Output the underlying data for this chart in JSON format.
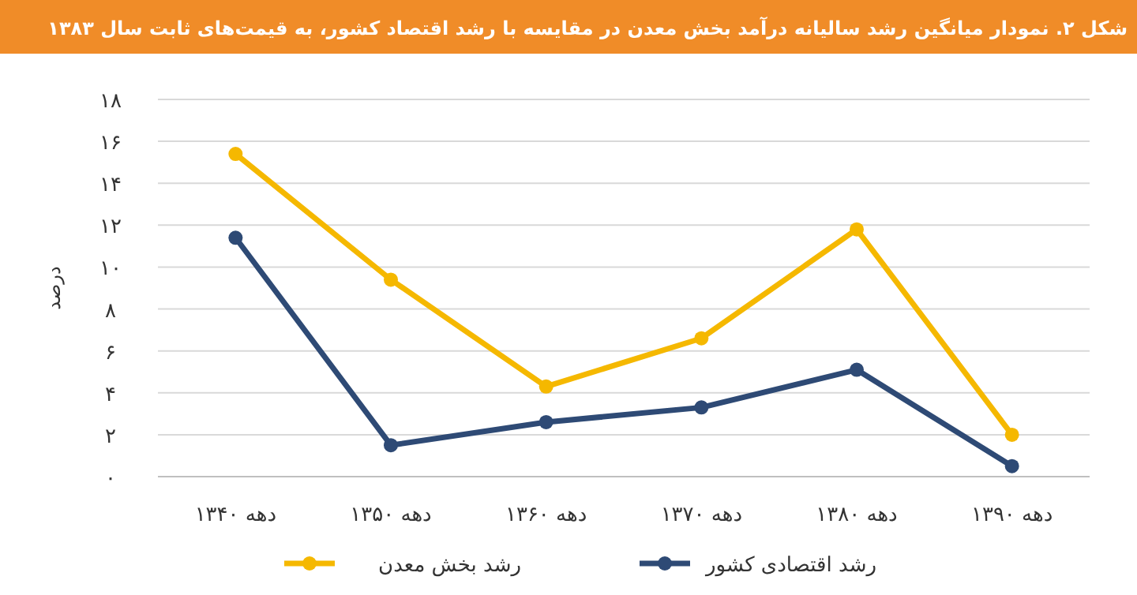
{
  "chart_data": {
    "type": "line",
    "title": "شکل ۲. نمودار میانگین رشد سالیانه درآمد بخش معدن در مقایسه با رشد اقتصاد کشور، به قیمت‌های ثابت سال ۱۳۸۳",
    "ylabel": "درصد",
    "categories": [
      "دهه ۱۳۴۰",
      "دهه ۱۳۵۰",
      "دهه ۱۳۶۰",
      "دهه ۱۳۷۰",
      "دهه ۱۳۸۰",
      "دهه ۱۳۹۰"
    ],
    "series": [
      {
        "name": "رشد بخش معدن",
        "color": "#f5b800",
        "values": [
          15.4,
          9.4,
          4.3,
          6.6,
          11.8,
          2.0
        ]
      },
      {
        "name": "رشد اقتصادی کشور",
        "color": "#2e4a75",
        "values": [
          11.4,
          1.5,
          2.6,
          3.3,
          5.1,
          0.5
        ]
      }
    ],
    "ylim": [
      0,
      18
    ],
    "yticks": [
      {
        "value": 0,
        "label": "۰"
      },
      {
        "value": 2,
        "label": "۲"
      },
      {
        "value": 4,
        "label": "۴"
      },
      {
        "value": 6,
        "label": "۶"
      },
      {
        "value": 8,
        "label": "۸"
      },
      {
        "value": 10,
        "label": "۱۰"
      },
      {
        "value": 12,
        "label": "۱۲"
      },
      {
        "value": 14,
        "label": "۱۴"
      },
      {
        "value": 16,
        "label": "۱۶"
      },
      {
        "value": 18,
        "label": "۱۸"
      }
    ],
    "grid": "y",
    "legend": "bottom",
    "marker": "circle",
    "line_style": "solid"
  }
}
